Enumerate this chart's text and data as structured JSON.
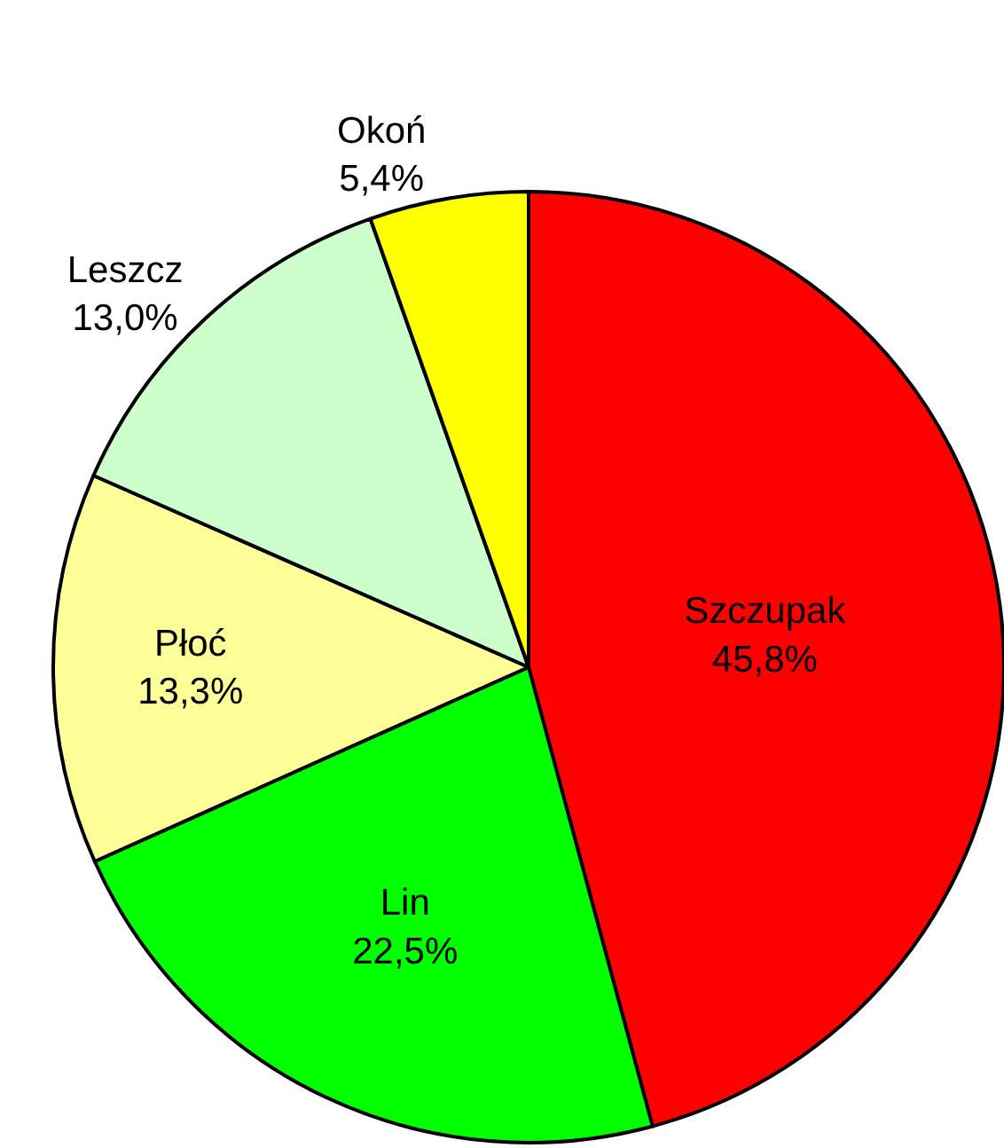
{
  "chart_data": {
    "type": "pie",
    "categories": [
      "Szczupak",
      "Lin",
      "Płoć",
      "Leszcz",
      "Okoń"
    ],
    "values": [
      45.8,
      22.5,
      13.3,
      13.0,
      5.4
    ],
    "value_labels": [
      "45,8%",
      "22,5%",
      "13,3%",
      "13,0%",
      "5,4%"
    ],
    "colors": [
      "#ff0000",
      "#00ff00",
      "#ffff99",
      "#ccffcc",
      "#ffff00"
    ],
    "legend": false
  }
}
